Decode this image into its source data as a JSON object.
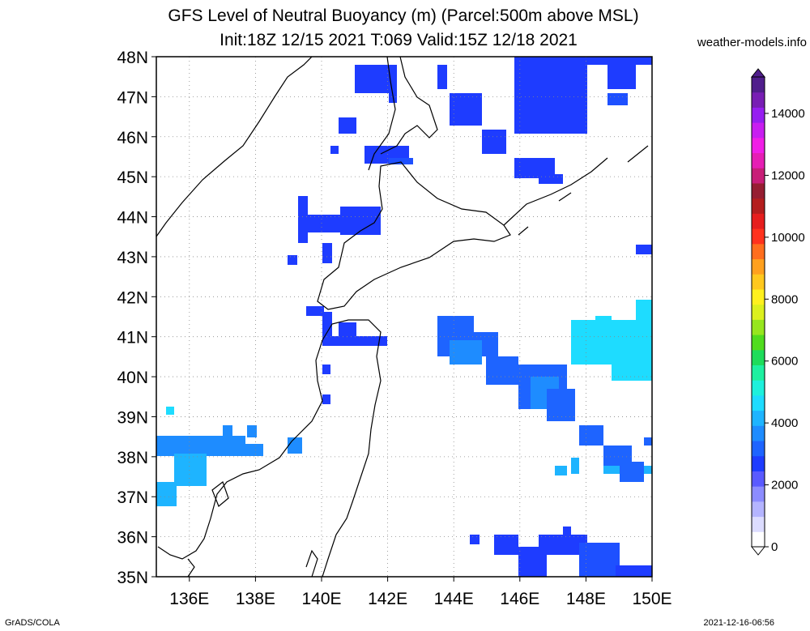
{
  "header": {
    "title_line1": "GFS Level of Neutral Buoyancy (m) (Parcel:500m above MSL)",
    "title_line2": "Init:18Z 12/15 2021 T:069 Valid:15Z 12/18 2021",
    "site": "weather-models.info"
  },
  "map": {
    "lat_labels": [
      "48N",
      "47N",
      "46N",
      "45N",
      "44N",
      "43N",
      "42N",
      "41N",
      "40N",
      "39N",
      "38N",
      "37N",
      "36N",
      "35N"
    ],
    "lon_labels": [
      "136E",
      "138E",
      "140E",
      "142E",
      "144E",
      "146E",
      "148E",
      "150E"
    ],
    "lat_range": [
      35,
      48
    ],
    "lon_range": [
      135,
      150
    ],
    "grid": true
  },
  "colorbar": {
    "labels": [
      "0",
      "2000",
      "4000",
      "6000",
      "8000",
      "10000",
      "12000",
      "14000"
    ],
    "colors": [
      "#ffffff",
      "#dcdcff",
      "#b4b4ff",
      "#8c8cff",
      "#5a5aff",
      "#1e3cff",
      "#1e64ff",
      "#1e8cff",
      "#1eb4ff",
      "#1edcff",
      "#1ef0dc",
      "#1ef0a0",
      "#1edc5a",
      "#50dc1e",
      "#96e61e",
      "#dcf01e",
      "#fff01e",
      "#ffc81e",
      "#ffa01e",
      "#ff6e1e",
      "#ff321e",
      "#e61e1e",
      "#b41e1e",
      "#961e32",
      "#c81e78",
      "#e61eb4",
      "#f01ee6",
      "#c81ef0",
      "#961ef0",
      "#781eb4",
      "#501e8c"
    ]
  },
  "footer": {
    "left": "GrADS/COLA",
    "right": "2021-12-16-06:56"
  }
}
